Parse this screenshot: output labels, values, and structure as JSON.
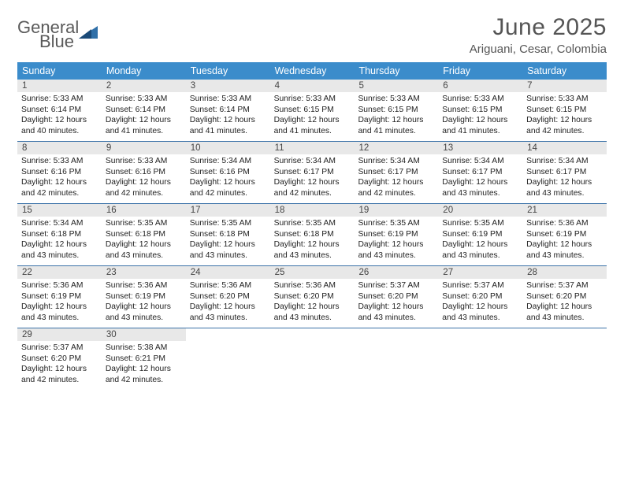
{
  "logo": {
    "line1": "General",
    "line2": "Blue",
    "color_gray": "#5a5a5a",
    "color_blue": "#2f6fa8"
  },
  "title": "June 2025",
  "location": "Ariguani, Cesar, Colombia",
  "header_bg": "#3b8ccb",
  "daynum_bg": "#e8e8e8",
  "week_border": "#3b72a8",
  "weekdays": [
    "Sunday",
    "Monday",
    "Tuesday",
    "Wednesday",
    "Thursday",
    "Friday",
    "Saturday"
  ],
  "days": [
    {
      "n": 1,
      "sunrise": "5:33 AM",
      "sunset": "6:14 PM",
      "dl": "12 hours and 40 minutes."
    },
    {
      "n": 2,
      "sunrise": "5:33 AM",
      "sunset": "6:14 PM",
      "dl": "12 hours and 41 minutes."
    },
    {
      "n": 3,
      "sunrise": "5:33 AM",
      "sunset": "6:14 PM",
      "dl": "12 hours and 41 minutes."
    },
    {
      "n": 4,
      "sunrise": "5:33 AM",
      "sunset": "6:15 PM",
      "dl": "12 hours and 41 minutes."
    },
    {
      "n": 5,
      "sunrise": "5:33 AM",
      "sunset": "6:15 PM",
      "dl": "12 hours and 41 minutes."
    },
    {
      "n": 6,
      "sunrise": "5:33 AM",
      "sunset": "6:15 PM",
      "dl": "12 hours and 41 minutes."
    },
    {
      "n": 7,
      "sunrise": "5:33 AM",
      "sunset": "6:15 PM",
      "dl": "12 hours and 42 minutes."
    },
    {
      "n": 8,
      "sunrise": "5:33 AM",
      "sunset": "6:16 PM",
      "dl": "12 hours and 42 minutes."
    },
    {
      "n": 9,
      "sunrise": "5:33 AM",
      "sunset": "6:16 PM",
      "dl": "12 hours and 42 minutes."
    },
    {
      "n": 10,
      "sunrise": "5:34 AM",
      "sunset": "6:16 PM",
      "dl": "12 hours and 42 minutes."
    },
    {
      "n": 11,
      "sunrise": "5:34 AM",
      "sunset": "6:17 PM",
      "dl": "12 hours and 42 minutes."
    },
    {
      "n": 12,
      "sunrise": "5:34 AM",
      "sunset": "6:17 PM",
      "dl": "12 hours and 42 minutes."
    },
    {
      "n": 13,
      "sunrise": "5:34 AM",
      "sunset": "6:17 PM",
      "dl": "12 hours and 43 minutes."
    },
    {
      "n": 14,
      "sunrise": "5:34 AM",
      "sunset": "6:17 PM",
      "dl": "12 hours and 43 minutes."
    },
    {
      "n": 15,
      "sunrise": "5:34 AM",
      "sunset": "6:18 PM",
      "dl": "12 hours and 43 minutes."
    },
    {
      "n": 16,
      "sunrise": "5:35 AM",
      "sunset": "6:18 PM",
      "dl": "12 hours and 43 minutes."
    },
    {
      "n": 17,
      "sunrise": "5:35 AM",
      "sunset": "6:18 PM",
      "dl": "12 hours and 43 minutes."
    },
    {
      "n": 18,
      "sunrise": "5:35 AM",
      "sunset": "6:18 PM",
      "dl": "12 hours and 43 minutes."
    },
    {
      "n": 19,
      "sunrise": "5:35 AM",
      "sunset": "6:19 PM",
      "dl": "12 hours and 43 minutes."
    },
    {
      "n": 20,
      "sunrise": "5:35 AM",
      "sunset": "6:19 PM",
      "dl": "12 hours and 43 minutes."
    },
    {
      "n": 21,
      "sunrise": "5:36 AM",
      "sunset": "6:19 PM",
      "dl": "12 hours and 43 minutes."
    },
    {
      "n": 22,
      "sunrise": "5:36 AM",
      "sunset": "6:19 PM",
      "dl": "12 hours and 43 minutes."
    },
    {
      "n": 23,
      "sunrise": "5:36 AM",
      "sunset": "6:19 PM",
      "dl": "12 hours and 43 minutes."
    },
    {
      "n": 24,
      "sunrise": "5:36 AM",
      "sunset": "6:20 PM",
      "dl": "12 hours and 43 minutes."
    },
    {
      "n": 25,
      "sunrise": "5:36 AM",
      "sunset": "6:20 PM",
      "dl": "12 hours and 43 minutes."
    },
    {
      "n": 26,
      "sunrise": "5:37 AM",
      "sunset": "6:20 PM",
      "dl": "12 hours and 43 minutes."
    },
    {
      "n": 27,
      "sunrise": "5:37 AM",
      "sunset": "6:20 PM",
      "dl": "12 hours and 43 minutes."
    },
    {
      "n": 28,
      "sunrise": "5:37 AM",
      "sunset": "6:20 PM",
      "dl": "12 hours and 43 minutes."
    },
    {
      "n": 29,
      "sunrise": "5:37 AM",
      "sunset": "6:20 PM",
      "dl": "12 hours and 42 minutes."
    },
    {
      "n": 30,
      "sunrise": "5:38 AM",
      "sunset": "6:21 PM",
      "dl": "12 hours and 42 minutes."
    }
  ],
  "labels": {
    "sunrise": "Sunrise:",
    "sunset": "Sunset:",
    "daylight": "Daylight:"
  },
  "layout": {
    "cols": 7,
    "start_offset": 0,
    "total_cells": 35
  },
  "fonts": {
    "title_pt": 30,
    "location_pt": 15,
    "weekday_pt": 12.5,
    "daynum_pt": 11.5,
    "body_pt": 10.3
  }
}
